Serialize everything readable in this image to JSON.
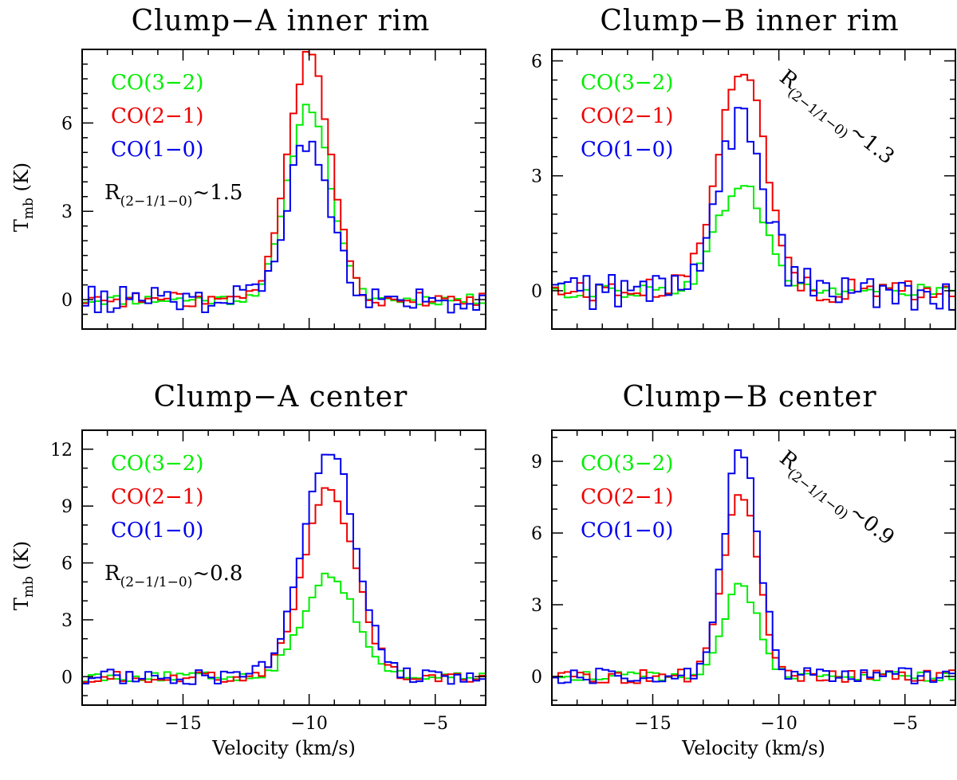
{
  "figure": {
    "xlabel": "Velocity (km/s)",
    "ylabel_main": "T",
    "ylabel_sub": "mb",
    "ylabel_unit": " (K)"
  },
  "legend_entries": [
    {
      "label": "CO(3−2)",
      "color": "#00ee00"
    },
    {
      "label": "CO(2−1)",
      "color": "#ee0000"
    },
    {
      "label": "CO(1−0)",
      "color": "#0000ee"
    }
  ],
  "chart_data": [
    {
      "type": "line",
      "title": "Clump−A inner rim",
      "ratio_label": {
        "main": "R",
        "sub": "(2−1/1−0)",
        "value": "~1.5",
        "rotated": false
      },
      "xlim": [
        -19,
        -3
      ],
      "ylim": [
        -1,
        8.5
      ],
      "xticks": [
        -15,
        -10,
        -5
      ],
      "yticks": [
        0,
        3,
        6
      ],
      "show_xlabel": false,
      "show_ylabel": true,
      "center": -10,
      "width": 2.0,
      "series": [
        {
          "name": "CO(3−2)",
          "color": "#00ee00",
          "peak": 6.6,
          "noise": 0.18,
          "skew": 0.0
        },
        {
          "name": "CO(2−1)",
          "color": "#ee0000",
          "peak": 8.3,
          "noise": 0.25,
          "skew": 0.0
        },
        {
          "name": "CO(1−0)",
          "color": "#0000ee",
          "peak": 5.5,
          "noise": 0.45,
          "skew": 0.0
        }
      ]
    },
    {
      "type": "line",
      "title": "Clump−B inner rim",
      "ratio_label": {
        "main": "R",
        "sub": "(2−1/1−0)",
        "value": "~1.3",
        "rotated": true
      },
      "xlim": [
        -19,
        -3
      ],
      "ylim": [
        -1,
        6.3
      ],
      "xticks": [
        -15,
        -10,
        -5
      ],
      "yticks": [
        0,
        3,
        6
      ],
      "show_xlabel": false,
      "show_ylabel": false,
      "center": -11.5,
      "width": 2.2,
      "series": [
        {
          "name": "CO(3−2)",
          "color": "#00ee00",
          "peak": 2.8,
          "noise": 0.2,
          "skew": 0.0
        },
        {
          "name": "CO(2−1)",
          "color": "#ee0000",
          "peak": 5.9,
          "noise": 0.3,
          "skew": 0.0
        },
        {
          "name": "CO(1−0)",
          "color": "#0000ee",
          "peak": 4.4,
          "noise": 0.5,
          "skew": 0.0
        }
      ]
    },
    {
      "type": "line",
      "title": "Clump−A center",
      "ratio_label": {
        "main": "R",
        "sub": "(2−1/1−0)",
        "value": "~0.8",
        "rotated": false
      },
      "xlim": [
        -19,
        -3
      ],
      "ylim": [
        -1.5,
        13
      ],
      "xticks": [
        -15,
        -10,
        -5
      ],
      "yticks": [
        0,
        3,
        6,
        9,
        12
      ],
      "show_xlabel": true,
      "show_ylabel": true,
      "center": -9.2,
      "width": 2.4,
      "series": [
        {
          "name": "CO(3−2)",
          "color": "#00ee00",
          "peak": 5.4,
          "noise": 0.25,
          "skew": 0.0
        },
        {
          "name": "CO(2−1)",
          "color": "#ee0000",
          "peak": 9.8,
          "noise": 0.3,
          "skew": 0.0
        },
        {
          "name": "CO(1−0)",
          "color": "#0000ee",
          "peak": 12.1,
          "noise": 0.4,
          "skew": 0.0
        }
      ]
    },
    {
      "type": "line",
      "title": "Clump−B center",
      "ratio_label": {
        "main": "R",
        "sub": "(2−1/1−0)",
        "value": "~0.9",
        "rotated": true
      },
      "xlim": [
        -19,
        -3
      ],
      "ylim": [
        -1.2,
        10.3
      ],
      "xticks": [
        -15,
        -10,
        -5
      ],
      "yticks": [
        0,
        3,
        6,
        9
      ],
      "show_xlabel": true,
      "show_ylabel": false,
      "center": -11.5,
      "width": 1.6,
      "series": [
        {
          "name": "CO(3−2)",
          "color": "#00ee00",
          "peak": 3.8,
          "noise": 0.2,
          "skew": 0.0
        },
        {
          "name": "CO(2−1)",
          "color": "#ee0000",
          "peak": 7.6,
          "noise": 0.3,
          "skew": 0.0
        },
        {
          "name": "CO(1−0)",
          "color": "#0000ee",
          "peak": 9.6,
          "noise": 0.35,
          "skew": 0.0
        }
      ]
    }
  ]
}
